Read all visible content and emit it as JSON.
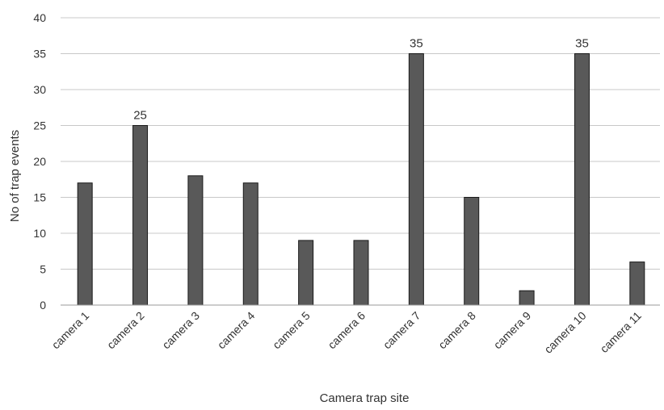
{
  "chart_data": {
    "type": "bar",
    "title": "",
    "xlabel": "Camera trap site",
    "ylabel": "No of trap events",
    "categories": [
      "camera 1",
      "camera 2",
      "camera 3",
      "camera 4",
      "camera 5",
      "camera 6",
      "camera 7",
      "camera 8",
      "camera 9",
      "camera 10",
      "camera 11"
    ],
    "values": [
      17,
      25,
      18,
      17,
      9,
      9,
      35,
      15,
      2,
      35,
      6
    ],
    "data_labels": {
      "camera 2": "25",
      "camera 7": "35",
      "camera 10": "35"
    },
    "ylim": [
      0,
      40
    ],
    "yticks": [
      0,
      5,
      10,
      15,
      20,
      25,
      30,
      35,
      40
    ],
    "grid": true,
    "legend": "none",
    "colors": {
      "bar_fill": "#595959",
      "bar_stroke": "#1a1a1a",
      "grid": "#c8c8c8",
      "text": "#333333"
    }
  }
}
